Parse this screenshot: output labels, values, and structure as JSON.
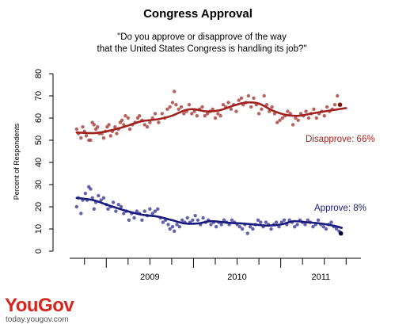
{
  "chart_data": {
    "type": "scatter",
    "title": "Congress Approval",
    "subtitle_lines": [
      "\"Do you approve or disapprove of the way",
      "that the United States Congress is handling its job?\""
    ],
    "ylabel": "Percent of Respondents",
    "xlabel": "",
    "ylim": [
      0,
      80
    ],
    "yticks": [
      "0",
      "10",
      "20",
      "30",
      "40",
      "50",
      "60",
      "70",
      "80"
    ],
    "x_axis_labels": [
      "2009",
      "2010",
      "2011"
    ],
    "x_unit": "years",
    "xlim": [
      2008.58,
      2011.92
    ],
    "legend": "none",
    "grid": false,
    "series": [
      {
        "name": "Disapprove",
        "label": "Disapprove: 66%",
        "color": "#a0211e",
        "marker_color": "#a63b36",
        "last_color": "#7a1410",
        "trend_x": [
          2008.66,
          2008.85,
          2009.0,
          2009.2,
          2009.4,
          2009.6,
          2009.75,
          2009.9,
          2010.0,
          2010.15,
          2010.3,
          2010.45,
          2010.6,
          2010.75,
          2010.9,
          2011.05,
          2011.2,
          2011.35,
          2011.5,
          2011.75
        ],
        "trend_y": [
          53.5,
          53.2,
          54.0,
          56.0,
          58.5,
          59.5,
          61.0,
          63.5,
          64.0,
          63.0,
          63.5,
          65.5,
          67.0,
          66.5,
          63.5,
          61.5,
          61.0,
          62.0,
          63.0,
          64.5
        ],
        "points": [
          [
            2008.66,
            55
          ],
          [
            2008.68,
            53
          ],
          [
            2008.71,
            51
          ],
          [
            2008.73,
            56
          ],
          [
            2008.75,
            54
          ],
          [
            2008.77,
            52
          ],
          [
            2008.8,
            50
          ],
          [
            2008.82,
            50
          ],
          [
            2008.84,
            58
          ],
          [
            2008.86,
            57
          ],
          [
            2008.88,
            55
          ],
          [
            2008.9,
            56
          ],
          [
            2008.92,
            53
          ],
          [
            2008.95,
            53
          ],
          [
            2008.97,
            51
          ],
          [
            2008.99,
            54
          ],
          [
            2009.01,
            56
          ],
          [
            2009.03,
            57
          ],
          [
            2009.05,
            52
          ],
          [
            2009.07,
            54
          ],
          [
            2009.1,
            56
          ],
          [
            2009.12,
            53
          ],
          [
            2009.14,
            55
          ],
          [
            2009.16,
            58
          ],
          [
            2009.18,
            59
          ],
          [
            2009.2,
            57
          ],
          [
            2009.22,
            61
          ],
          [
            2009.25,
            60
          ],
          [
            2009.27,
            55
          ],
          [
            2009.3,
            57
          ],
          [
            2009.33,
            58
          ],
          [
            2009.36,
            60
          ],
          [
            2009.38,
            61
          ],
          [
            2009.41,
            59
          ],
          [
            2009.44,
            57
          ],
          [
            2009.47,
            56
          ],
          [
            2009.5,
            58
          ],
          [
            2009.53,
            60
          ],
          [
            2009.56,
            62
          ],
          [
            2009.6,
            58
          ],
          [
            2009.64,
            62
          ],
          [
            2009.67,
            60
          ],
          [
            2009.7,
            64
          ],
          [
            2009.73,
            65
          ],
          [
            2009.76,
            67
          ],
          [
            2009.78,
            72
          ],
          [
            2009.8,
            66
          ],
          [
            2009.83,
            64
          ],
          [
            2009.86,
            65
          ],
          [
            2009.89,
            62
          ],
          [
            2009.92,
            63
          ],
          [
            2009.95,
            66
          ],
          [
            2009.98,
            62
          ],
          [
            2010.01,
            63
          ],
          [
            2010.04,
            61
          ],
          [
            2010.07,
            64
          ],
          [
            2010.1,
            65
          ],
          [
            2010.13,
            61
          ],
          [
            2010.16,
            62
          ],
          [
            2010.19,
            63
          ],
          [
            2010.22,
            64
          ],
          [
            2010.25,
            60
          ],
          [
            2010.28,
            62
          ],
          [
            2010.31,
            61
          ],
          [
            2010.34,
            66
          ],
          [
            2010.37,
            65
          ],
          [
            2010.4,
            67
          ],
          [
            2010.43,
            64
          ],
          [
            2010.46,
            66
          ],
          [
            2010.49,
            63
          ],
          [
            2010.52,
            68
          ],
          [
            2010.55,
            69
          ],
          [
            2010.57,
            66
          ],
          [
            2010.6,
            67
          ],
          [
            2010.63,
            70
          ],
          [
            2010.66,
            65
          ],
          [
            2010.69,
            69
          ],
          [
            2010.72,
            66
          ],
          [
            2010.75,
            62
          ],
          [
            2010.78,
            64
          ],
          [
            2010.81,
            70
          ],
          [
            2010.84,
            66
          ],
          [
            2010.87,
            63
          ],
          [
            2010.9,
            65
          ],
          [
            2010.93,
            62
          ],
          [
            2010.96,
            58
          ],
          [
            2010.99,
            59
          ],
          [
            2011.02,
            60
          ],
          [
            2011.05,
            61
          ],
          [
            2011.08,
            63
          ],
          [
            2011.11,
            62
          ],
          [
            2011.14,
            57
          ],
          [
            2011.17,
            60
          ],
          [
            2011.2,
            59
          ],
          [
            2011.23,
            62
          ],
          [
            2011.26,
            61
          ],
          [
            2011.29,
            63
          ],
          [
            2011.32,
            60
          ],
          [
            2011.35,
            62
          ],
          [
            2011.38,
            64
          ],
          [
            2011.41,
            60
          ],
          [
            2011.44,
            62
          ],
          [
            2011.47,
            63
          ],
          [
            2011.5,
            61
          ],
          [
            2011.53,
            65
          ],
          [
            2011.56,
            63
          ],
          [
            2011.59,
            64
          ],
          [
            2011.62,
            66
          ],
          [
            2011.65,
            70
          ],
          [
            2011.68,
            66
          ]
        ]
      },
      {
        "name": "Approve",
        "label": "Approve: 8%",
        "color": "#1a1a7e",
        "marker_color": "#3a3a9a",
        "last_color": "#000033",
        "trend_x": [
          2008.66,
          2008.85,
          2009.0,
          2009.2,
          2009.4,
          2009.6,
          2009.75,
          2009.9,
          2010.05,
          2010.2,
          2010.4,
          2010.55,
          2010.7,
          2010.85,
          2011.0,
          2011.15,
          2011.3,
          2011.45,
          2011.6,
          2011.7
        ],
        "trend_y": [
          24.0,
          23.0,
          21.0,
          18.5,
          16.5,
          15.5,
          14.0,
          12.5,
          12.5,
          13.5,
          12.8,
          12.5,
          12.0,
          11.5,
          12.0,
          13.5,
          13.0,
          12.5,
          11.5,
          10.5
        ],
        "points": [
          [
            2008.66,
            20
          ],
          [
            2008.68,
            24
          ],
          [
            2008.71,
            17
          ],
          [
            2008.73,
            23
          ],
          [
            2008.76,
            26
          ],
          [
            2008.78,
            23
          ],
          [
            2008.8,
            29
          ],
          [
            2008.82,
            28
          ],
          [
            2008.84,
            24
          ],
          [
            2008.86,
            19
          ],
          [
            2008.88,
            22
          ],
          [
            2008.91,
            25
          ],
          [
            2008.94,
            23
          ],
          [
            2008.97,
            24
          ],
          [
            2009.0,
            21
          ],
          [
            2009.02,
            19
          ],
          [
            2009.05,
            20
          ],
          [
            2009.08,
            22
          ],
          [
            2009.11,
            18
          ],
          [
            2009.14,
            21
          ],
          [
            2009.17,
            20
          ],
          [
            2009.2,
            17
          ],
          [
            2009.23,
            18
          ],
          [
            2009.26,
            14
          ],
          [
            2009.29,
            17
          ],
          [
            2009.32,
            15
          ],
          [
            2009.35,
            18
          ],
          [
            2009.38,
            17
          ],
          [
            2009.41,
            14
          ],
          [
            2009.44,
            18
          ],
          [
            2009.47,
            16
          ],
          [
            2009.5,
            19
          ],
          [
            2009.53,
            17
          ],
          [
            2009.56,
            18
          ],
          [
            2009.59,
            19
          ],
          [
            2009.62,
            15
          ],
          [
            2009.65,
            13
          ],
          [
            2009.68,
            14
          ],
          [
            2009.71,
            12
          ],
          [
            2009.73,
            10
          ],
          [
            2009.76,
            11
          ],
          [
            2009.78,
            9
          ],
          [
            2009.81,
            12
          ],
          [
            2009.84,
            11
          ],
          [
            2009.87,
            14
          ],
          [
            2009.9,
            13
          ],
          [
            2009.93,
            15
          ],
          [
            2009.96,
            13
          ],
          [
            2009.99,
            14
          ],
          [
            2010.02,
            16
          ],
          [
            2010.05,
            14
          ],
          [
            2010.08,
            12
          ],
          [
            2010.11,
            15
          ],
          [
            2010.14,
            13
          ],
          [
            2010.17,
            14
          ],
          [
            2010.2,
            12
          ],
          [
            2010.23,
            13
          ],
          [
            2010.26,
            11
          ],
          [
            2010.29,
            13
          ],
          [
            2010.32,
            12
          ],
          [
            2010.35,
            14
          ],
          [
            2010.38,
            13
          ],
          [
            2010.41,
            12
          ],
          [
            2010.44,
            14
          ],
          [
            2010.47,
            13
          ],
          [
            2010.5,
            12
          ],
          [
            2010.53,
            11
          ],
          [
            2010.56,
            10
          ],
          [
            2010.59,
            12
          ],
          [
            2010.62,
            8
          ],
          [
            2010.65,
            11
          ],
          [
            2010.68,
            10
          ],
          [
            2010.71,
            12
          ],
          [
            2010.74,
            14
          ],
          [
            2010.77,
            13
          ],
          [
            2010.8,
            11
          ],
          [
            2010.83,
            13
          ],
          [
            2010.86,
            12
          ],
          [
            2010.89,
            10
          ],
          [
            2010.92,
            12
          ],
          [
            2010.95,
            13
          ],
          [
            2010.98,
            11
          ],
          [
            2011.01,
            13
          ],
          [
            2011.04,
            14
          ],
          [
            2011.07,
            12
          ],
          [
            2011.1,
            14
          ],
          [
            2011.13,
            13
          ],
          [
            2011.16,
            11
          ],
          [
            2011.19,
            12
          ],
          [
            2011.22,
            14
          ],
          [
            2011.25,
            13
          ],
          [
            2011.28,
            12
          ],
          [
            2011.31,
            14
          ],
          [
            2011.34,
            13
          ],
          [
            2011.37,
            11
          ],
          [
            2011.4,
            12
          ],
          [
            2011.43,
            14
          ],
          [
            2011.46,
            12
          ],
          [
            2011.49,
            11
          ],
          [
            2011.52,
            10
          ],
          [
            2011.55,
            12
          ],
          [
            2011.58,
            13
          ],
          [
            2011.61,
            11
          ],
          [
            2011.64,
            10
          ],
          [
            2011.67,
            9
          ],
          [
            2011.69,
            8
          ]
        ]
      }
    ]
  },
  "branding": {
    "logo_text": "YouGov",
    "site": "today.yougov.com"
  }
}
